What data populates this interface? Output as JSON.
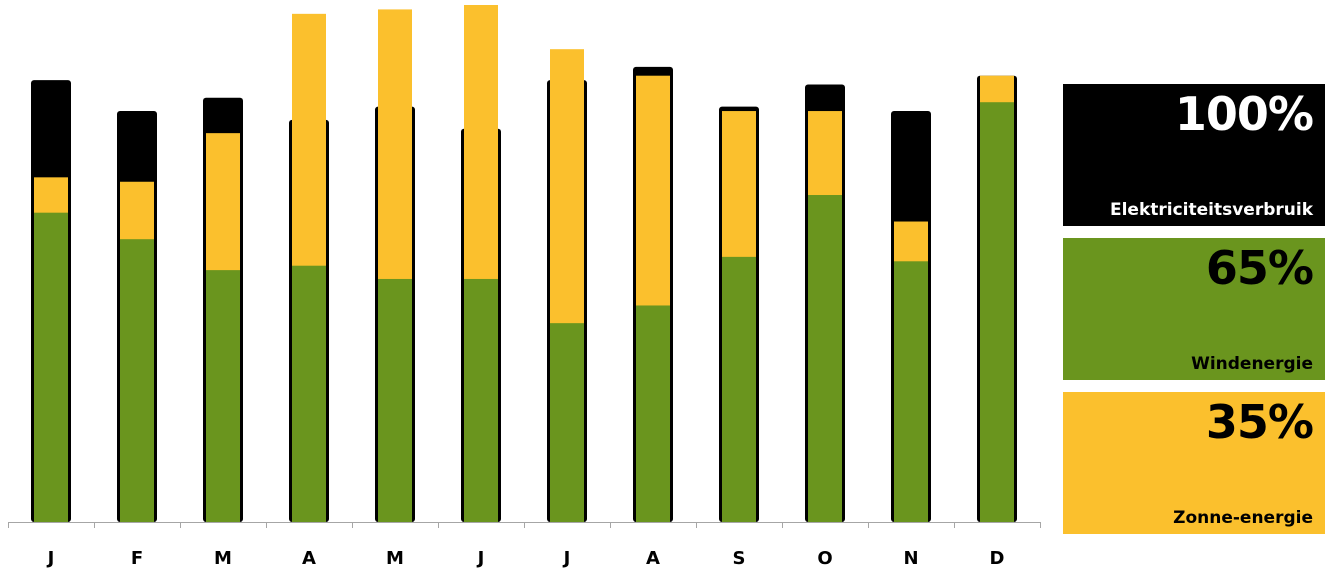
{
  "chart_data": {
    "type": "bar",
    "categories": [
      "J",
      "F",
      "M",
      "A",
      "M",
      "J",
      "J",
      "A",
      "S",
      "O",
      "N",
      "D"
    ],
    "series": [
      {
        "name": "Elektriciteitsverbruik",
        "values": [
          100,
          93,
          96,
          91,
          94,
          89,
          100,
          103,
          94,
          99,
          93,
          101
        ]
      },
      {
        "name": "Windenergie",
        "values": [
          70,
          64,
          57,
          58,
          55,
          55,
          45,
          49,
          60,
          74,
          59,
          95
        ]
      },
      {
        "name": "Zonne-energie",
        "values": [
          8,
          13,
          31,
          57,
          61,
          62,
          62,
          52,
          33,
          19,
          9,
          6
        ]
      }
    ],
    "ylim": [
      0,
      117
    ],
    "grid": false,
    "legend": "right",
    "colors": {
      "total": "#000000",
      "wind": "#6a951e",
      "solar": "#fbc02d",
      "axis": "#a6a6a6"
    }
  },
  "legend": {
    "total": {
      "value": "100%",
      "label": "Elektriciteitsverbruik"
    },
    "wind": {
      "value": "65%",
      "label": "Windenergie"
    },
    "solar": {
      "value": "35%",
      "label": "Zonne-energie"
    }
  }
}
